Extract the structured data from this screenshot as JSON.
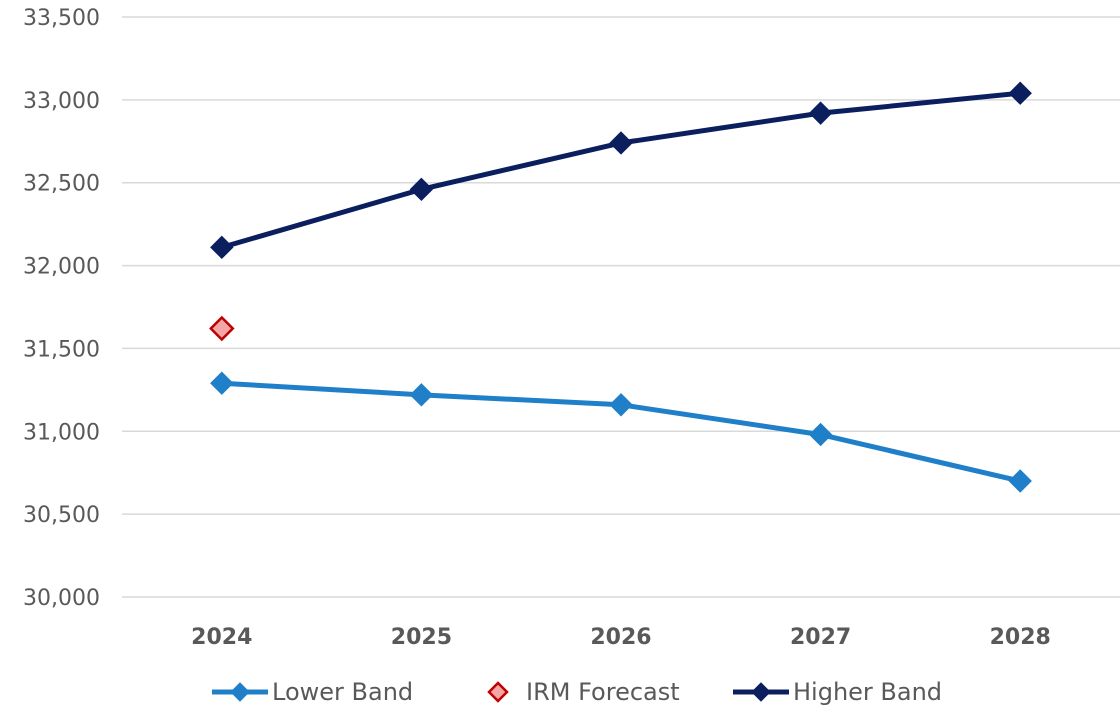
{
  "chart_data": {
    "type": "line",
    "categories": [
      "2024",
      "2025",
      "2026",
      "2027",
      "2028"
    ],
    "ylim": [
      30000,
      33500
    ],
    "yticks": [
      30000,
      30500,
      31000,
      31500,
      32000,
      32500,
      33000,
      33500
    ],
    "ytick_labels": [
      "30,000",
      "30,500",
      "31,000",
      "31,500",
      "32,000",
      "32,500",
      "33,000",
      "33,500"
    ],
    "grid": true,
    "legend_position": "bottom",
    "series": [
      {
        "name": "Lower Band",
        "values": [
          31290,
          31220,
          31160,
          30980,
          30700
        ],
        "color": "#1f7fc9",
        "marker": "diamond",
        "line": true
      },
      {
        "name": "IRM Forecast",
        "values": [
          31620,
          null,
          null,
          null,
          null
        ],
        "color": "#c00000",
        "fill": "#f4a6a6",
        "marker": "diamond-outline",
        "line": false
      },
      {
        "name": "Higher Band",
        "values": [
          32110,
          32460,
          32740,
          32920,
          33040
        ],
        "color": "#0b1f5e",
        "marker": "diamond",
        "line": true
      }
    ],
    "title": "",
    "xlabel": "",
    "ylabel": ""
  }
}
